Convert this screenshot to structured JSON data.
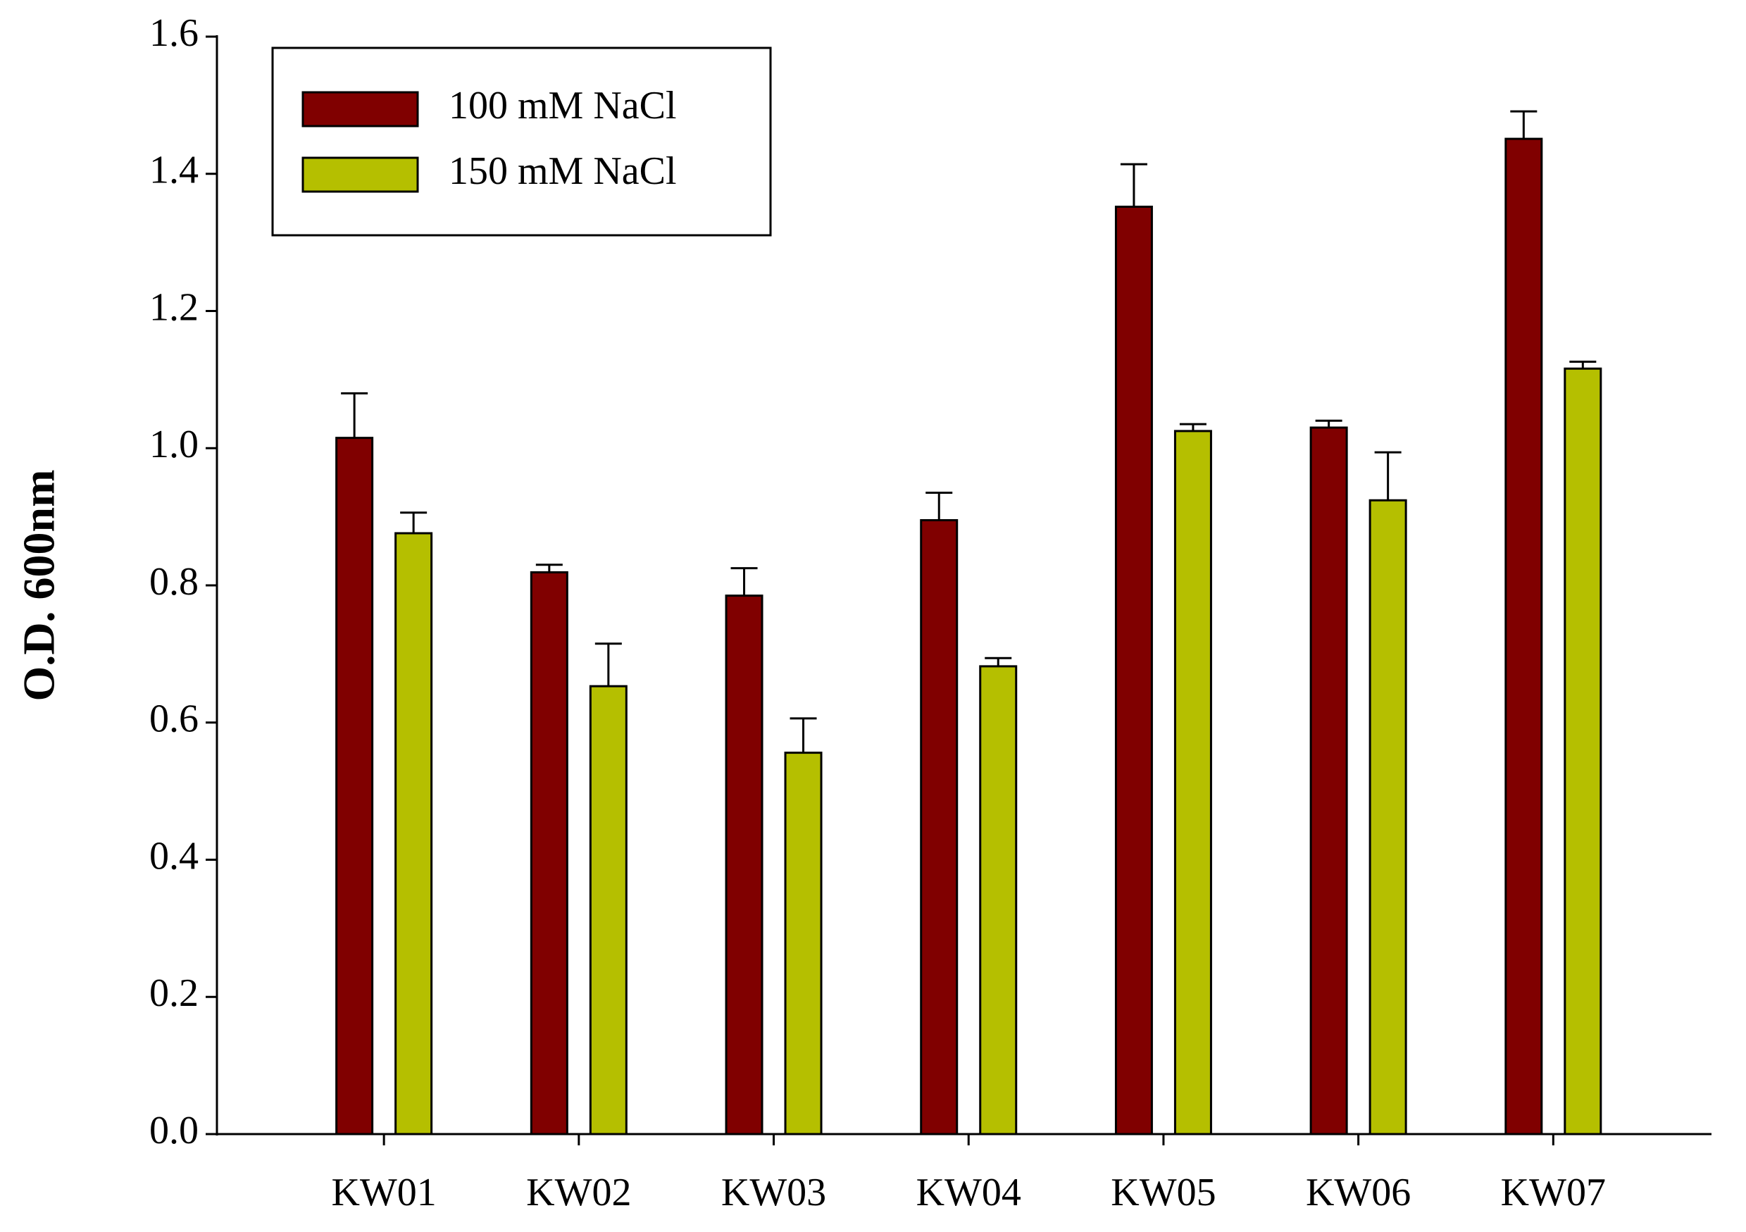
{
  "chart_data": {
    "type": "bar",
    "ylabel": "O.D. 600nm",
    "categories": [
      "KW01",
      "KW02",
      "KW03",
      "KW04",
      "KW05",
      "KW06",
      "KW07"
    ],
    "series": [
      {
        "name": "100 mM NaCl",
        "color": "#800000",
        "values": [
          1.015,
          0.819,
          0.785,
          0.895,
          1.352,
          1.03,
          1.451
        ],
        "errors": [
          0.065,
          0.011,
          0.04,
          0.04,
          0.062,
          0.01,
          0.04
        ]
      },
      {
        "name": "150 mM NaCl",
        "color": "#b5bf00",
        "values": [
          0.876,
          0.653,
          0.556,
          0.682,
          1.025,
          0.924,
          1.116
        ],
        "errors": [
          0.03,
          0.062,
          0.05,
          0.012,
          0.01,
          0.07,
          0.01
        ]
      }
    ],
    "ylim": [
      0,
      1.6
    ],
    "yticks": [
      {
        "value": 0,
        "label": "0.0"
      },
      0.2,
      0.4,
      0.6,
      0.8,
      {
        "value": 1,
        "label": "1.0"
      },
      1.2,
      1.4,
      1.6
    ],
    "grid": false,
    "legend": "upper left"
  }
}
